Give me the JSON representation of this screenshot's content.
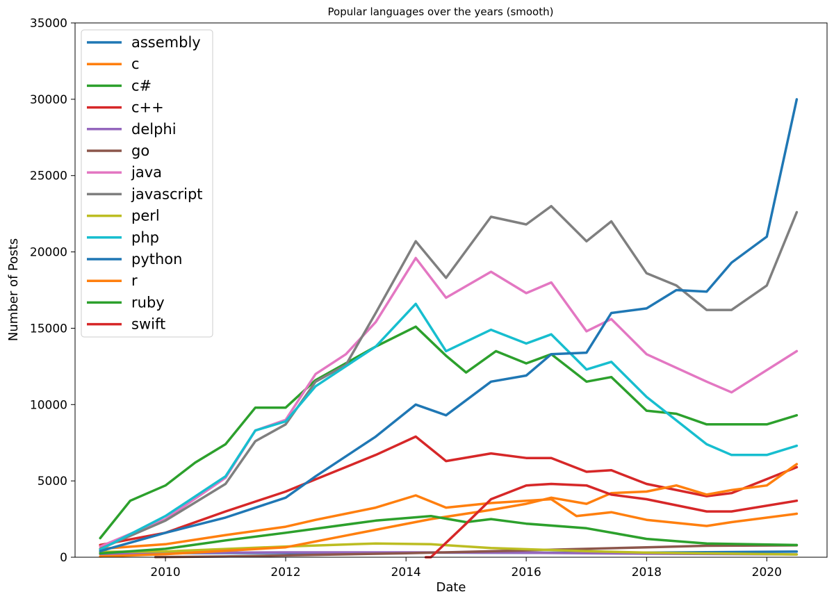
{
  "chart_data": {
    "type": "line",
    "title": "Popular languages over the years (smooth)",
    "xlabel": "Date",
    "ylabel": "Number of Posts",
    "xlim": [
      "2008-07-01",
      "2021-01-01"
    ],
    "ylim": [
      0,
      35000
    ],
    "x_ticks": [
      "2010",
      "2012",
      "2014",
      "2016",
      "2018",
      "2020"
    ],
    "y_ticks": [
      "0",
      "5000",
      "10000",
      "15000",
      "20000",
      "25000",
      "30000",
      "35000"
    ],
    "legend_position": "top-left",
    "grid": false,
    "series": [
      {
        "name": "assembly",
        "color": "#1f77b4",
        "points": [
          [
            "2008-12-01",
            300
          ],
          [
            "2010-01-01",
            270
          ],
          [
            "2012-01-01",
            280
          ],
          [
            "2014-01-01",
            310
          ],
          [
            "2016-01-01",
            290
          ],
          [
            "2018-01-01",
            300
          ],
          [
            "2020-07-01",
            370
          ]
        ]
      },
      {
        "name": "c",
        "color": "#ff7f0e",
        "points": [
          [
            "2008-12-01",
            550
          ],
          [
            "2010-01-01",
            850
          ],
          [
            "2011-01-01",
            1450
          ],
          [
            "2012-01-01",
            2000
          ],
          [
            "2012-07-01",
            2450
          ],
          [
            "2013-07-01",
            3250
          ],
          [
            "2014-03-01",
            4050
          ],
          [
            "2014-09-01",
            3250
          ],
          [
            "2015-06-01",
            3550
          ],
          [
            "2016-06-01",
            3800
          ],
          [
            "2016-11-01",
            2700
          ],
          [
            "2017-06-01",
            2950
          ],
          [
            "2018-01-01",
            2450
          ],
          [
            "2019-01-01",
            2050
          ],
          [
            "2019-06-01",
            2300
          ],
          [
            "2020-07-01",
            2850
          ]
        ]
      },
      {
        "name": "c#",
        "color": "#2ca02c",
        "points": [
          [
            "2008-12-01",
            1250
          ],
          [
            "2009-06-01",
            3700
          ],
          [
            "2010-01-01",
            4700
          ],
          [
            "2010-07-01",
            6200
          ],
          [
            "2011-01-01",
            7400
          ],
          [
            "2011-07-01",
            9800
          ],
          [
            "2012-01-01",
            9800
          ],
          [
            "2012-07-01",
            11600
          ],
          [
            "2013-07-01",
            13800
          ],
          [
            "2014-03-01",
            15100
          ],
          [
            "2014-09-01",
            13200
          ],
          [
            "2015-01-01",
            12100
          ],
          [
            "2015-07-01",
            13500
          ],
          [
            "2016-01-01",
            12700
          ],
          [
            "2016-06-01",
            13300
          ],
          [
            "2017-01-01",
            11500
          ],
          [
            "2017-06-01",
            11800
          ],
          [
            "2018-01-01",
            9600
          ],
          [
            "2018-07-01",
            9400
          ],
          [
            "2019-01-01",
            8700
          ],
          [
            "2020-01-01",
            8700
          ],
          [
            "2020-07-01",
            9300
          ]
        ]
      },
      {
        "name": "c++",
        "color": "#d62728",
        "points": [
          [
            "2008-12-01",
            800
          ],
          [
            "2010-01-01",
            1600
          ],
          [
            "2011-01-01",
            3000
          ],
          [
            "2012-01-01",
            4300
          ],
          [
            "2012-07-01",
            5100
          ],
          [
            "2013-07-01",
            6700
          ],
          [
            "2014-03-01",
            7900
          ],
          [
            "2014-09-01",
            6300
          ],
          [
            "2015-06-01",
            6800
          ],
          [
            "2016-01-01",
            6500
          ],
          [
            "2016-06-01",
            6500
          ],
          [
            "2017-01-01",
            5600
          ],
          [
            "2017-06-01",
            5700
          ],
          [
            "2018-01-01",
            4800
          ],
          [
            "2019-01-01",
            4000
          ],
          [
            "2019-06-01",
            4200
          ],
          [
            "2020-07-01",
            5900
          ]
        ]
      },
      {
        "name": "delphi",
        "color": "#9467bd",
        "points": [
          [
            "2008-12-01",
            200
          ],
          [
            "2010-01-01",
            280
          ],
          [
            "2012-01-01",
            320
          ],
          [
            "2014-01-01",
            320
          ],
          [
            "2016-01-01",
            290
          ],
          [
            "2018-01-01",
            230
          ],
          [
            "2020-07-01",
            180
          ]
        ]
      },
      {
        "name": "go",
        "color": "#8c564b",
        "points": [
          [
            "2009-11-01",
            10
          ],
          [
            "2011-01-01",
            50
          ],
          [
            "2012-01-01",
            120
          ],
          [
            "2014-01-01",
            260
          ],
          [
            "2016-01-01",
            450
          ],
          [
            "2018-01-01",
            650
          ],
          [
            "2019-01-01",
            750
          ],
          [
            "2020-07-01",
            780
          ]
        ]
      },
      {
        "name": "java",
        "color": "#e377c2",
        "points": [
          [
            "2008-12-01",
            700
          ],
          [
            "2010-01-01",
            2500
          ],
          [
            "2011-01-01",
            5200
          ],
          [
            "2011-07-01",
            8300
          ],
          [
            "2012-01-01",
            9000
          ],
          [
            "2012-07-01",
            12000
          ],
          [
            "2013-01-01",
            13300
          ],
          [
            "2013-07-01",
            15400
          ],
          [
            "2014-03-01",
            19600
          ],
          [
            "2014-09-01",
            17000
          ],
          [
            "2015-06-01",
            18700
          ],
          [
            "2016-01-01",
            17300
          ],
          [
            "2016-06-01",
            18000
          ],
          [
            "2017-01-01",
            14800
          ],
          [
            "2017-06-01",
            15600
          ],
          [
            "2018-01-01",
            13300
          ],
          [
            "2019-01-01",
            11500
          ],
          [
            "2019-06-01",
            10800
          ],
          [
            "2020-07-01",
            13500
          ]
        ]
      },
      {
        "name": "javascript",
        "color": "#7f7f7f",
        "points": [
          [
            "2008-12-01",
            550
          ],
          [
            "2010-01-01",
            2400
          ],
          [
            "2011-01-01",
            4800
          ],
          [
            "2011-07-01",
            7600
          ],
          [
            "2012-01-01",
            8700
          ],
          [
            "2012-07-01",
            11500
          ],
          [
            "2013-01-01",
            12600
          ],
          [
            "2013-07-01",
            16000
          ],
          [
            "2014-03-01",
            20700
          ],
          [
            "2014-09-01",
            18300
          ],
          [
            "2015-06-01",
            22300
          ],
          [
            "2016-01-01",
            21800
          ],
          [
            "2016-06-01",
            23000
          ],
          [
            "2017-01-01",
            20700
          ],
          [
            "2017-06-01",
            22000
          ],
          [
            "2018-01-01",
            18600
          ],
          [
            "2018-07-01",
            17800
          ],
          [
            "2019-01-01",
            16200
          ],
          [
            "2019-06-01",
            16200
          ],
          [
            "2020-01-01",
            17800
          ],
          [
            "2020-07-01",
            22600
          ]
        ]
      },
      {
        "name": "perl",
        "color": "#bcbd22",
        "points": [
          [
            "2008-12-01",
            350
          ],
          [
            "2010-01-01",
            380
          ],
          [
            "2012-01-01",
            700
          ],
          [
            "2013-07-01",
            900
          ],
          [
            "2014-06-01",
            850
          ],
          [
            "2015-06-01",
            600
          ],
          [
            "2017-01-01",
            400
          ],
          [
            "2018-01-01",
            300
          ],
          [
            "2020-07-01",
            180
          ]
        ]
      },
      {
        "name": "php",
        "color": "#17becf",
        "points": [
          [
            "2008-12-01",
            500
          ],
          [
            "2010-01-01",
            2700
          ],
          [
            "2011-01-01",
            5300
          ],
          [
            "2011-07-01",
            8300
          ],
          [
            "2012-01-01",
            8900
          ],
          [
            "2012-07-01",
            11200
          ],
          [
            "2013-07-01",
            13800
          ],
          [
            "2014-03-01",
            16600
          ],
          [
            "2014-09-01",
            13500
          ],
          [
            "2015-06-01",
            14900
          ],
          [
            "2016-01-01",
            14000
          ],
          [
            "2016-06-01",
            14600
          ],
          [
            "2017-01-01",
            12300
          ],
          [
            "2017-06-01",
            12800
          ],
          [
            "2018-01-01",
            10500
          ],
          [
            "2019-01-01",
            7400
          ],
          [
            "2019-06-01",
            6700
          ],
          [
            "2020-01-01",
            6700
          ],
          [
            "2020-07-01",
            7300
          ]
        ]
      },
      {
        "name": "python",
        "color": "#1f77b4",
        "points": [
          [
            "2008-12-01",
            400
          ],
          [
            "2010-01-01",
            1600
          ],
          [
            "2011-01-01",
            2600
          ],
          [
            "2012-01-01",
            3900
          ],
          [
            "2012-07-01",
            5300
          ],
          [
            "2013-07-01",
            7900
          ],
          [
            "2014-03-01",
            10000
          ],
          [
            "2014-09-01",
            9300
          ],
          [
            "2015-06-01",
            11500
          ],
          [
            "2016-01-01",
            11900
          ],
          [
            "2016-06-01",
            13300
          ],
          [
            "2017-01-01",
            13400
          ],
          [
            "2017-06-01",
            16000
          ],
          [
            "2018-01-01",
            16300
          ],
          [
            "2018-07-01",
            17500
          ],
          [
            "2019-01-01",
            17400
          ],
          [
            "2019-06-01",
            19300
          ],
          [
            "2020-01-01",
            21000
          ],
          [
            "2020-07-01",
            30000
          ]
        ]
      },
      {
        "name": "r",
        "color": "#ff7f0e",
        "points": [
          [
            "2008-12-01",
            50
          ],
          [
            "2010-01-01",
            200
          ],
          [
            "2012-01-01",
            650
          ],
          [
            "2013-07-01",
            1800
          ],
          [
            "2014-06-01",
            2500
          ],
          [
            "2015-06-01",
            3100
          ],
          [
            "2016-01-01",
            3500
          ],
          [
            "2016-06-01",
            3900
          ],
          [
            "2017-01-01",
            3500
          ],
          [
            "2017-06-01",
            4200
          ],
          [
            "2018-01-01",
            4300
          ],
          [
            "2018-07-01",
            4700
          ],
          [
            "2019-01-01",
            4100
          ],
          [
            "2019-06-01",
            4400
          ],
          [
            "2020-01-01",
            4700
          ],
          [
            "2020-07-01",
            6100
          ]
        ]
      },
      {
        "name": "ruby",
        "color": "#2ca02c",
        "points": [
          [
            "2008-12-01",
            250
          ],
          [
            "2010-01-01",
            550
          ],
          [
            "2011-01-01",
            1100
          ],
          [
            "2012-01-01",
            1600
          ],
          [
            "2013-07-01",
            2400
          ],
          [
            "2014-06-01",
            2700
          ],
          [
            "2015-01-01",
            2300
          ],
          [
            "2015-06-01",
            2500
          ],
          [
            "2016-01-01",
            2200
          ],
          [
            "2017-01-01",
            1900
          ],
          [
            "2018-01-01",
            1200
          ],
          [
            "2019-01-01",
            900
          ],
          [
            "2020-07-01",
            800
          ]
        ]
      },
      {
        "name": "swift",
        "color": "#d62728",
        "points": [
          [
            "2014-05-01",
            0
          ],
          [
            "2014-06-01",
            0
          ],
          [
            "2015-01-01",
            2200
          ],
          [
            "2015-06-01",
            3800
          ],
          [
            "2016-01-01",
            4700
          ],
          [
            "2016-06-01",
            4800
          ],
          [
            "2017-01-01",
            4700
          ],
          [
            "2017-06-01",
            4100
          ],
          [
            "2018-01-01",
            3800
          ],
          [
            "2019-01-01",
            3000
          ],
          [
            "2019-06-01",
            3000
          ],
          [
            "2020-07-01",
            3700
          ]
        ]
      }
    ]
  }
}
